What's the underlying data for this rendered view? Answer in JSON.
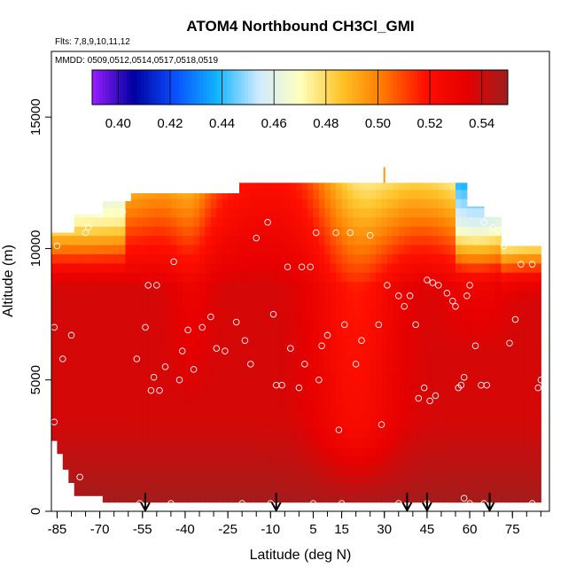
{
  "chart_data": {
    "type": "heatmap",
    "title": "ATOM4 Northbound CH3Cl_GMI",
    "subtitle_flights": "Flts: 7,8,9,10,11,12",
    "subtitle_dates": "MMDD: 0509,0512,0514,0517,0518,0519",
    "xlabel": "Latitude (deg N)",
    "ylabel": "Altitude (m)",
    "xlim": [
      -87,
      88
    ],
    "ylim": [
      0,
      17500
    ],
    "x_ticks": [
      -85,
      -70,
      -55,
      -40,
      -25,
      -10,
      5,
      15,
      30,
      45,
      60,
      75
    ],
    "x_tick_labels": [
      "-85",
      "-70",
      "-55",
      "-40",
      "-25",
      "-10",
      "5",
      "15",
      "30",
      "45",
      "60",
      "75"
    ],
    "y_ticks": [
      0,
      5000,
      10000,
      15000
    ],
    "y_tick_labels": [
      "0",
      "5000",
      "10000",
      "15000"
    ],
    "colorbar": {
      "min": 0.39,
      "max": 0.55,
      "ticks": [
        0.4,
        0.42,
        0.44,
        0.46,
        0.48,
        0.5,
        0.52,
        0.54
      ],
      "tick_labels": [
        "0.40",
        "0.42",
        "0.44",
        "0.46",
        "0.48",
        "0.50",
        "0.52",
        "0.54"
      ],
      "colors": [
        "#9a1eff",
        "#0000a0",
        "#0a50ff",
        "#10b4ff",
        "#cfeaff",
        "#ffffbe",
        "#ffc328",
        "#ff7800",
        "#ff1000",
        "#e60000",
        "#a01e1e"
      ]
    },
    "arrows_x": [
      -54,
      -8,
      38,
      45,
      67
    ],
    "points": [
      [
        -86,
        7000
      ],
      [
        -83,
        5800
      ],
      [
        -80,
        6700
      ],
      [
        -85,
        10100
      ],
      [
        -86,
        3400
      ],
      [
        -77,
        1300
      ],
      [
        -75,
        10600
      ],
      [
        -70,
        11300
      ],
      [
        -74,
        10800
      ],
      [
        -62,
        11400
      ],
      [
        -57,
        5800
      ],
      [
        -54,
        7000
      ],
      [
        -53,
        8600
      ],
      [
        -50,
        8600
      ],
      [
        -52,
        4600
      ],
      [
        -51,
        5100
      ],
      [
        -49,
        4600
      ],
      [
        -47,
        5500
      ],
      [
        -44,
        9500
      ],
      [
        -42,
        5000
      ],
      [
        -41,
        6100
      ],
      [
        -39,
        6900
      ],
      [
        -37,
        5400
      ],
      [
        -34,
        7000
      ],
      [
        -31,
        7400
      ],
      [
        -29,
        6200
      ],
      [
        -26,
        6100
      ],
      [
        -22,
        7200
      ],
      [
        -19,
        6500
      ],
      [
        -17,
        5600
      ],
      [
        -15,
        10400
      ],
      [
        -11,
        11000
      ],
      [
        -9,
        7500
      ],
      [
        -8,
        4800
      ],
      [
        -6,
        4800
      ],
      [
        -4,
        9300
      ],
      [
        -3,
        6200
      ],
      [
        0,
        4700
      ],
      [
        1,
        9300
      ],
      [
        2,
        5600
      ],
      [
        4,
        9300
      ],
      [
        6,
        10600
      ],
      [
        7,
        5000
      ],
      [
        8,
        6300
      ],
      [
        10,
        6700
      ],
      [
        13,
        10600
      ],
      [
        14,
        3100
      ],
      [
        16,
        7100
      ],
      [
        18,
        10600
      ],
      [
        20,
        5600
      ],
      [
        22,
        6500
      ],
      [
        25,
        10500
      ],
      [
        28,
        7100
      ],
      [
        29,
        3300
      ],
      [
        31,
        8600
      ],
      [
        35,
        8200
      ],
      [
        37,
        7800
      ],
      [
        39,
        8200
      ],
      [
        41,
        7100
      ],
      [
        42,
        4300
      ],
      [
        44,
        4700
      ],
      [
        46,
        4200
      ],
      [
        48,
        4400
      ],
      [
        45,
        8800
      ],
      [
        47,
        8700
      ],
      [
        49,
        8600
      ],
      [
        52,
        8300
      ],
      [
        54,
        8000
      ],
      [
        55,
        7800
      ],
      [
        56,
        4700
      ],
      [
        57,
        4800
      ],
      [
        58,
        5100
      ],
      [
        59,
        8200
      ],
      [
        60,
        8600
      ],
      [
        62,
        6300
      ],
      [
        64,
        4800
      ],
      [
        66,
        4800
      ],
      [
        68,
        10800
      ],
      [
        70,
        10700
      ],
      [
        72,
        10100
      ],
      [
        74,
        6400
      ],
      [
        76,
        7300
      ],
      [
        78,
        9400
      ],
      [
        82,
        9400
      ],
      [
        84,
        4700
      ],
      [
        85,
        5000
      ],
      [
        65,
        11000
      ],
      [
        68,
        11400
      ],
      [
        -56,
        300
      ],
      [
        -50,
        200
      ],
      [
        -45,
        300
      ],
      [
        -35,
        200
      ],
      [
        -25,
        200
      ],
      [
        -15,
        200
      ],
      [
        -5,
        200
      ],
      [
        5,
        300
      ],
      [
        15,
        300
      ],
      [
        25,
        200
      ],
      [
        35,
        300
      ],
      [
        45,
        300
      ],
      [
        55,
        200
      ],
      [
        58,
        500
      ],
      [
        60,
        300
      ],
      [
        65,
        300
      ],
      [
        75,
        200
      ],
      [
        82,
        300
      ],
      [
        -30,
        200
      ],
      [
        -40,
        200
      ],
      [
        10,
        200
      ],
      [
        -20,
        300
      ],
      [
        -10,
        300
      ]
    ]
  }
}
